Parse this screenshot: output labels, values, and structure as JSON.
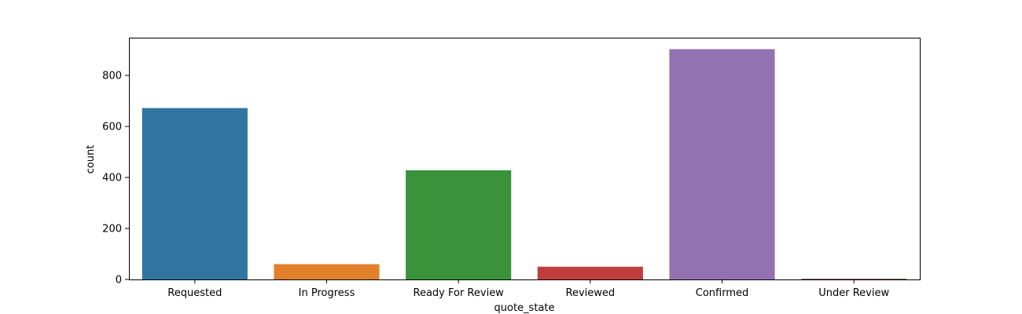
{
  "chart_data": {
    "type": "bar",
    "title": "",
    "xlabel": "quote_state",
    "ylabel": "count",
    "categories": [
      "Requested",
      "In Progress",
      "Ready For Review",
      "Reviewed",
      "Confirmed",
      "Under Review"
    ],
    "values": [
      672,
      60,
      428,
      50,
      903,
      3
    ],
    "colors": [
      "#3274a1",
      "#e1812c",
      "#3a923a",
      "#c03d3e",
      "#9372b2",
      "#845b53"
    ],
    "ylim": [
      0,
      948
    ],
    "yticks": [
      0,
      200,
      400,
      600,
      800
    ],
    "grid": false,
    "legend": "none"
  }
}
